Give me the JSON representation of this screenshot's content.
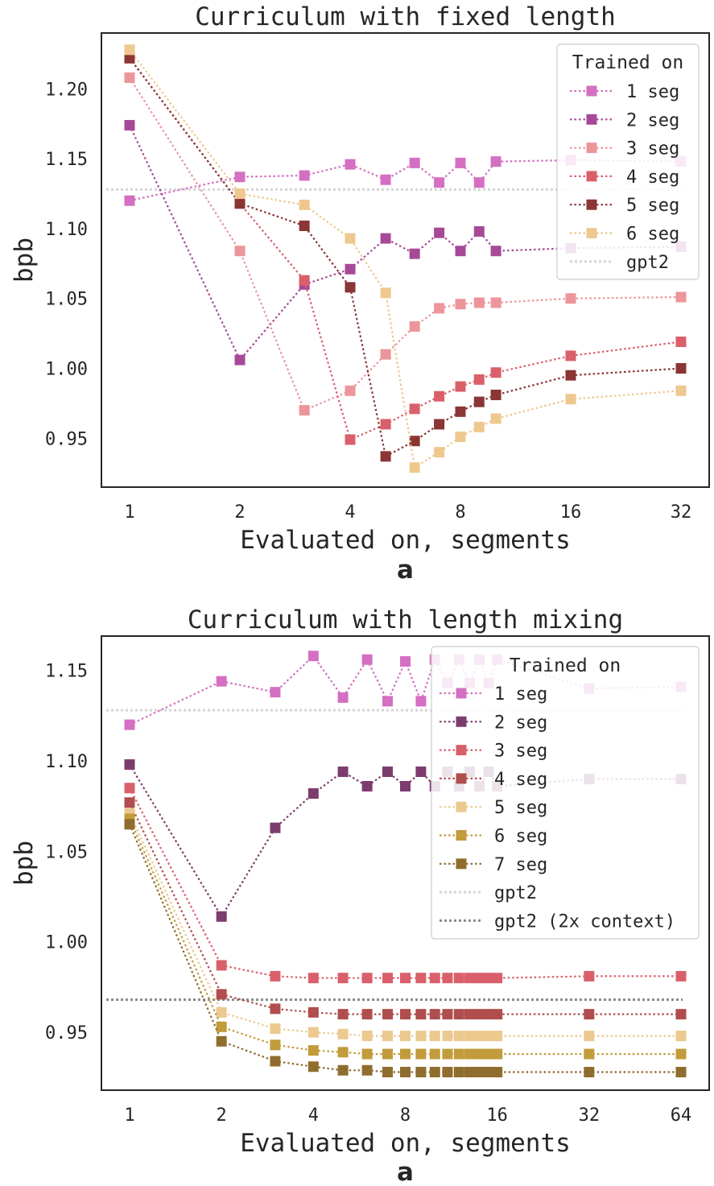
{
  "chart_data": [
    {
      "type": "line",
      "title": "Curriculum with fixed length",
      "xlabel": "Evaluated on, segments",
      "ylabel": "bpb",
      "sublabel": "a",
      "x_scale": "log2",
      "xlim": [
        1,
        32
      ],
      "ylim": [
        0.915,
        1.24
      ],
      "x_ticks": [
        1,
        2,
        4,
        8,
        16,
        32
      ],
      "y_ticks": [
        0.95,
        1.0,
        1.05,
        1.1,
        1.15,
        1.2
      ],
      "grid": false,
      "legend": {
        "title": "Trained on",
        "position": "top-right"
      },
      "series": [
        {
          "name": "1 seg",
          "color": "#d46fc2",
          "x": [
            1,
            2,
            3,
            4,
            5,
            6,
            7,
            8,
            9,
            10,
            16,
            32
          ],
          "y": [
            1.12,
            1.137,
            1.138,
            1.146,
            1.135,
            1.147,
            1.133,
            1.147,
            1.133,
            1.148,
            1.149,
            1.148
          ]
        },
        {
          "name": "2 seg",
          "color": "#a64a98",
          "x": [
            1,
            2,
            3,
            4,
            5,
            6,
            7,
            8,
            9,
            10,
            16,
            32
          ],
          "y": [
            1.174,
            1.006,
            1.06,
            1.071,
            1.093,
            1.082,
            1.097,
            1.084,
            1.098,
            1.084,
            1.086,
            1.087
          ]
        },
        {
          "name": "3 seg",
          "color": "#ec959a",
          "x": [
            1,
            2,
            3,
            4,
            5,
            6,
            7,
            8,
            9,
            10,
            16,
            32
          ],
          "y": [
            1.208,
            1.084,
            0.97,
            0.984,
            1.01,
            1.03,
            1.043,
            1.046,
            1.047,
            1.047,
            1.05,
            1.051
          ]
        },
        {
          "name": "4 seg",
          "color": "#d9606b",
          "x": [
            1,
            2,
            3,
            4,
            5,
            6,
            7,
            8,
            9,
            10,
            16,
            32
          ],
          "y": [
            1.222,
            1.118,
            1.063,
            0.949,
            0.96,
            0.971,
            0.98,
            0.987,
            0.992,
            0.997,
            1.009,
            1.019
          ]
        },
        {
          "name": "5 seg",
          "color": "#8b3535",
          "x": [
            1,
            2,
            3,
            4,
            5,
            6,
            7,
            8,
            9,
            10,
            16,
            32
          ],
          "y": [
            1.222,
            1.118,
            1.102,
            1.058,
            0.937,
            0.948,
            0.96,
            0.969,
            0.976,
            0.981,
            0.995,
            1.0
          ]
        },
        {
          "name": "6 seg",
          "color": "#eec88e",
          "x": [
            1,
            2,
            3,
            4,
            5,
            6,
            7,
            8,
            9,
            10,
            16,
            32
          ],
          "y": [
            1.228,
            1.125,
            1.117,
            1.093,
            1.054,
            0.929,
            0.94,
            0.951,
            0.958,
            0.964,
            0.978,
            0.984
          ]
        },
        {
          "name": "gpt2",
          "color": "#d5d5d5",
          "baseline": 1.128
        }
      ]
    },
    {
      "type": "line",
      "title": "Curriculum with length mixing",
      "xlabel": "Evaluated on, segments",
      "ylabel": "bpb",
      "sublabel": "a",
      "x_scale": "log2",
      "xlim": [
        1,
        64
      ],
      "ylim": [
        0.918,
        1.169
      ],
      "x_ticks": [
        1,
        2,
        4,
        8,
        16,
        32,
        64
      ],
      "y_ticks": [
        0.95,
        1.0,
        1.05,
        1.1,
        1.15
      ],
      "grid": false,
      "legend": {
        "title": "Trained on",
        "position": "top-right"
      },
      "series": [
        {
          "name": "1 seg",
          "color": "#d46fc2",
          "x": [
            1,
            2,
            3,
            4,
            5,
            6,
            7,
            8,
            9,
            10,
            11,
            12,
            13,
            14,
            15,
            16,
            32,
            64
          ],
          "y": [
            1.12,
            1.144,
            1.138,
            1.158,
            1.135,
            1.156,
            1.133,
            1.155,
            1.133,
            1.156,
            1.143,
            1.156,
            1.143,
            1.156,
            1.143,
            1.156,
            1.14,
            1.141
          ]
        },
        {
          "name": "2 seg",
          "color": "#7d3c6e",
          "x": [
            1,
            2,
            3,
            4,
            5,
            6,
            7,
            8,
            9,
            10,
            11,
            12,
            13,
            14,
            15,
            16,
            32,
            64
          ],
          "y": [
            1.098,
            1.014,
            1.063,
            1.082,
            1.094,
            1.086,
            1.094,
            1.086,
            1.094,
            1.086,
            1.094,
            1.086,
            1.094,
            1.086,
            1.094,
            1.086,
            1.09,
            1.09
          ]
        },
        {
          "name": "3 seg",
          "color": "#d9606b",
          "x": [
            1,
            2,
            3,
            4,
            5,
            6,
            7,
            8,
            9,
            10,
            11,
            12,
            13,
            14,
            15,
            16,
            32,
            64
          ],
          "y": [
            1.085,
            0.987,
            0.981,
            0.98,
            0.98,
            0.98,
            0.98,
            0.98,
            0.98,
            0.98,
            0.98,
            0.98,
            0.98,
            0.98,
            0.98,
            0.98,
            0.981,
            0.981
          ]
        },
        {
          "name": "4 seg",
          "color": "#b04e4e",
          "x": [
            1,
            2,
            3,
            4,
            5,
            6,
            7,
            8,
            9,
            10,
            11,
            12,
            13,
            14,
            15,
            16,
            32,
            64
          ],
          "y": [
            1.077,
            0.971,
            0.963,
            0.961,
            0.96,
            0.96,
            0.96,
            0.96,
            0.96,
            0.96,
            0.96,
            0.96,
            0.96,
            0.96,
            0.96,
            0.96,
            0.96,
            0.96
          ]
        },
        {
          "name": "5 seg",
          "color": "#ebc98f",
          "x": [
            1,
            2,
            3,
            4,
            5,
            6,
            7,
            8,
            9,
            10,
            11,
            12,
            13,
            14,
            15,
            16,
            32,
            64
          ],
          "y": [
            1.071,
            0.961,
            0.952,
            0.95,
            0.949,
            0.948,
            0.948,
            0.948,
            0.948,
            0.948,
            0.948,
            0.948,
            0.948,
            0.948,
            0.948,
            0.948,
            0.948,
            0.948
          ]
        },
        {
          "name": "6 seg",
          "color": "#c29b3b",
          "x": [
            1,
            2,
            3,
            4,
            5,
            6,
            7,
            8,
            9,
            10,
            11,
            12,
            13,
            14,
            15,
            16,
            32,
            64
          ],
          "y": [
            1.068,
            0.953,
            0.943,
            0.94,
            0.939,
            0.938,
            0.938,
            0.938,
            0.938,
            0.938,
            0.938,
            0.938,
            0.938,
            0.938,
            0.938,
            0.938,
            0.938,
            0.938
          ]
        },
        {
          "name": "7 seg",
          "color": "#8f6d2e",
          "x": [
            1,
            2,
            3,
            4,
            5,
            6,
            7,
            8,
            9,
            10,
            11,
            12,
            13,
            14,
            15,
            16,
            32,
            64
          ],
          "y": [
            1.065,
            0.945,
            0.934,
            0.931,
            0.929,
            0.929,
            0.928,
            0.928,
            0.928,
            0.928,
            0.928,
            0.928,
            0.928,
            0.928,
            0.928,
            0.928,
            0.928,
            0.928
          ]
        },
        {
          "name": "gpt2",
          "color": "#d5d5d5",
          "baseline": 1.128
        },
        {
          "name": "gpt2 (2x context)",
          "color": "#8a8a8a",
          "baseline": 0.968
        }
      ]
    }
  ]
}
